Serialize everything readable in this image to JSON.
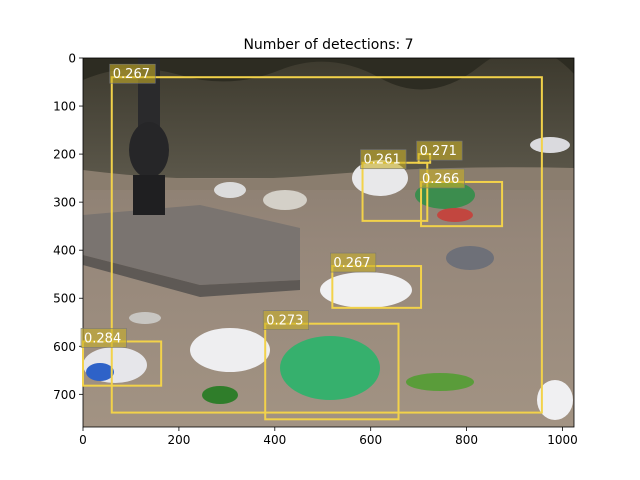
{
  "chart_data": {
    "type": "image-detections",
    "title": "Number of detections: 7",
    "image_content": "photo of litter (plastic bags, bottles) on dirt ground beside a lamp post base and low shrubs",
    "xlim": [
      0,
      1024
    ],
    "ylim": [
      768,
      0
    ],
    "xticks": [
      0,
      200,
      400,
      600,
      800,
      1000
    ],
    "yticks": [
      0,
      100,
      200,
      300,
      400,
      500,
      600,
      700
    ],
    "box_color": "#f2d24a",
    "detections": [
      {
        "score": "0.267",
        "x0": 60,
        "y0": 40,
        "x1": 957,
        "y1": 738
      },
      {
        "score": "0.271",
        "x0": 700,
        "y0": 200,
        "x1": 724,
        "y1": 218
      },
      {
        "score": "0.261",
        "x0": 583,
        "y0": 218,
        "x1": 718,
        "y1": 339
      },
      {
        "score": "0.266",
        "x0": 705,
        "y0": 258,
        "x1": 874,
        "y1": 350
      },
      {
        "score": "0.267",
        "x0": 520,
        "y0": 433,
        "x1": 705,
        "y1": 520
      },
      {
        "score": "0.273",
        "x0": 380,
        "y0": 553,
        "x1": 658,
        "y1": 752
      },
      {
        "score": "0.284",
        "x0": 0,
        "y0": 590,
        "x1": 163,
        "y1": 682
      }
    ]
  }
}
